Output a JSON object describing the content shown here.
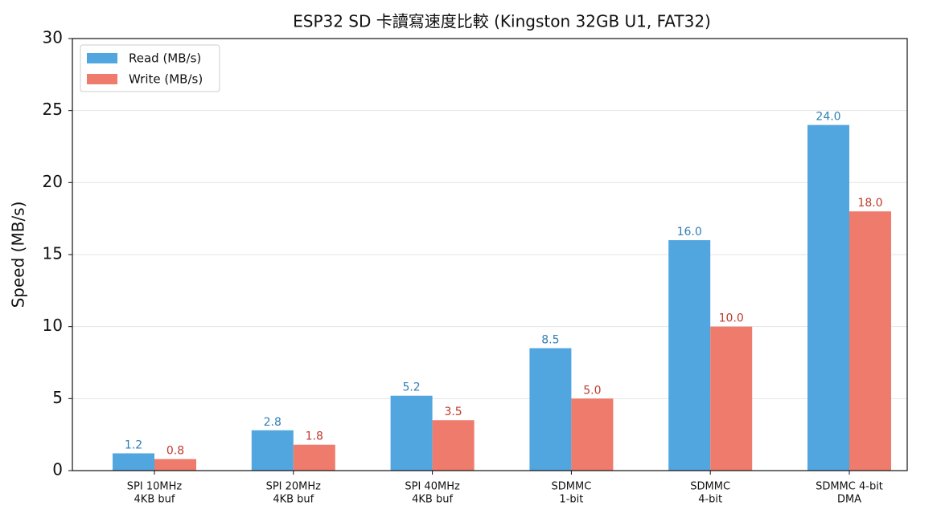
{
  "chart_data": {
    "type": "bar",
    "title": "ESP32 SD 卡讀寫速度比較 (Kingston 32GB U1, FAT32)",
    "y_label": "Speed (MB/s)",
    "categories": [
      [
        "SPI 10MHz",
        "4KB buf"
      ],
      [
        "SPI 20MHz",
        "4KB buf"
      ],
      [
        "SPI 40MHz",
        "4KB buf"
      ],
      [
        "SDMMC",
        "1-bit"
      ],
      [
        "SDMMC",
        "4-bit"
      ],
      [
        "SDMMC 4-bit",
        "DMA"
      ]
    ],
    "series": [
      {
        "name": "Read (MB/s)",
        "color": "#52a6e0",
        "label_color": "#2f7fb8",
        "values": [
          1.2,
          2.8,
          5.2,
          8.5,
          16.0,
          24.0
        ],
        "value_labels": [
          "1.2",
          "2.8",
          "5.2",
          "8.5",
          "16.0",
          "24.0"
        ]
      },
      {
        "name": "Write (MB/s)",
        "color": "#ee7b6c",
        "label_color": "#c0392b",
        "values": [
          0.8,
          1.8,
          3.5,
          5.0,
          10.0,
          18.0
        ],
        "value_labels": [
          "0.8",
          "1.8",
          "3.5",
          "5.0",
          "10.0",
          "18.0"
        ]
      }
    ],
    "ylim": [
      0,
      30
    ],
    "yticks": [
      0,
      5,
      10,
      15,
      20,
      25,
      30
    ],
    "grid": true,
    "legend": "upper left"
  }
}
